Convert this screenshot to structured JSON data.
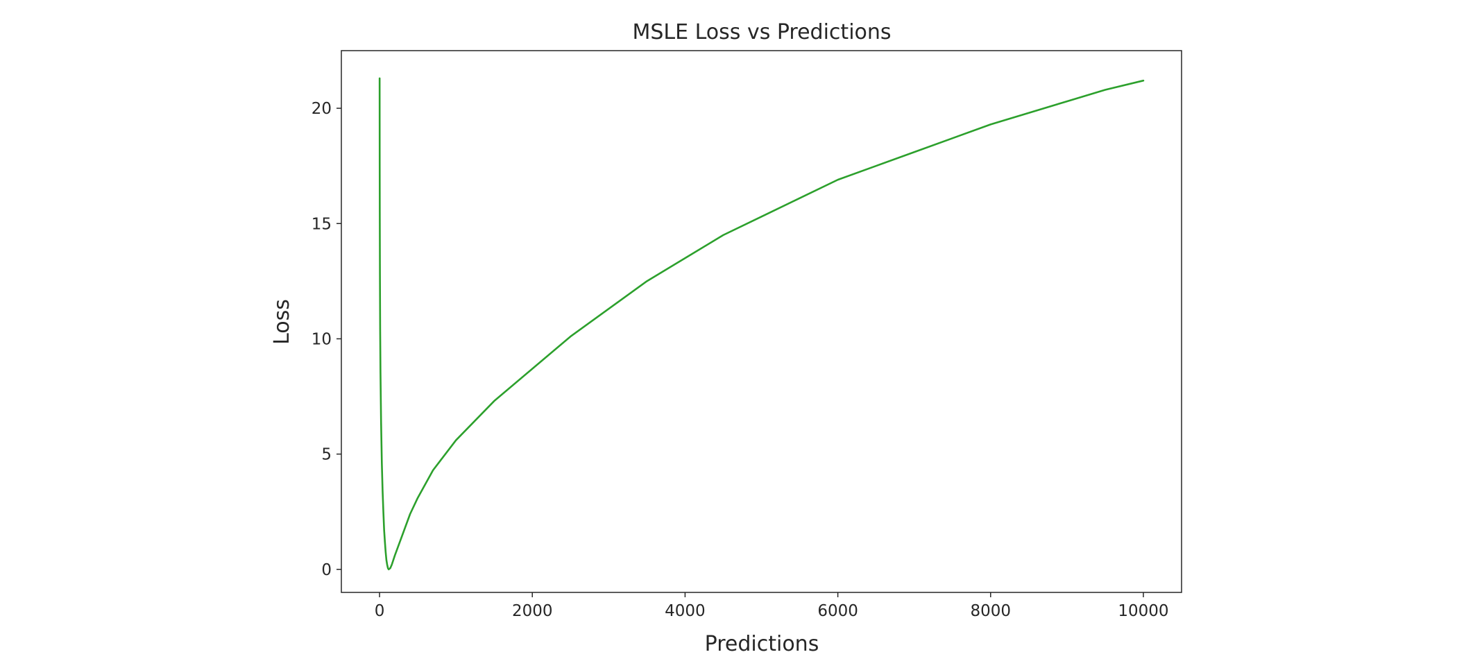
{
  "chart_data": {
    "type": "line",
    "title": "MSLE Loss vs Predictions",
    "xlabel": "Predictions",
    "ylabel": "Loss",
    "xlim": [
      -500,
      10500
    ],
    "ylim": [
      -1,
      22.5
    ],
    "xticks": [
      0,
      2000,
      4000,
      6000,
      8000,
      10000
    ],
    "yticks": [
      0,
      5,
      10,
      15,
      20
    ],
    "grid": false,
    "series": [
      {
        "color": "#2ca02c",
        "x": [
          1,
          2,
          3,
          5,
          8,
          12,
          20,
          30,
          40,
          50,
          60,
          70,
          80,
          90,
          100,
          110,
          120,
          140,
          160,
          200,
          300,
          400,
          500,
          700,
          1000,
          1500,
          2000,
          2500,
          3000,
          3500,
          4000,
          4500,
          5000,
          5500,
          6000,
          6500,
          7000,
          7500,
          8000,
          8500,
          9000,
          9500,
          10000
        ],
        "y": [
          21.3,
          17.5,
          15.4,
          12.8,
          10.4,
          8.6,
          6.4,
          4.6,
          3.4,
          2.5,
          1.7,
          1.2,
          0.75,
          0.4,
          0.2,
          0.05,
          0.0,
          0.05,
          0.2,
          0.6,
          1.5,
          2.4,
          3.1,
          4.3,
          5.6,
          7.3,
          8.7,
          10.1,
          11.3,
          12.5,
          13.5,
          14.5,
          15.3,
          16.1,
          16.9,
          17.5,
          18.1,
          18.7,
          19.3,
          19.8,
          20.3,
          20.8,
          21.2
        ]
      }
    ]
  }
}
